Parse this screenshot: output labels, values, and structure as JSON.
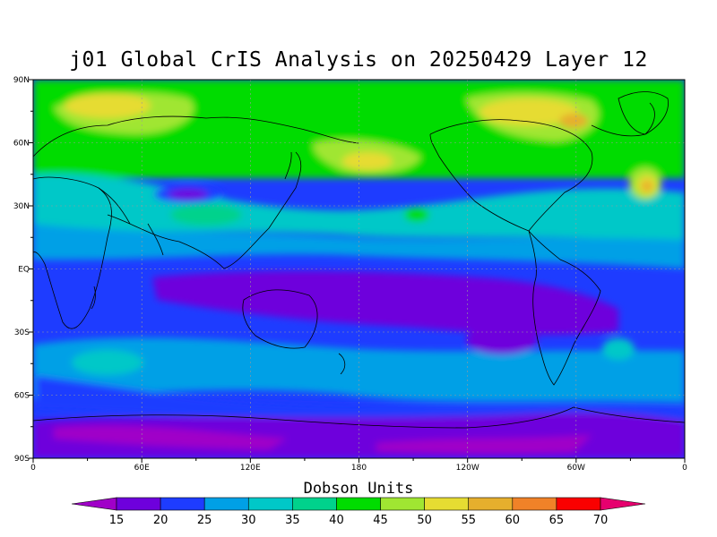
{
  "title": "j01 Global CrIS Analysis on 20250429 Layer 12",
  "colorbar": {
    "title": "Dobson Units",
    "levels": [
      "15",
      "20",
      "25",
      "30",
      "35",
      "40",
      "45",
      "50",
      "55",
      "60",
      "65",
      "70"
    ],
    "colors": [
      "#a000c8",
      "#6e00dc",
      "#1e3cff",
      "#00a0e6",
      "#00c8c8",
      "#00d28c",
      "#00dc00",
      "#a0e632",
      "#e6dc32",
      "#e6af2d",
      "#f08228",
      "#fa0000",
      "#e6006e"
    ]
  },
  "axes": {
    "lat_labels": [
      "90N",
      "60N",
      "30N",
      "EQ",
      "30S",
      "60S",
      "90S"
    ],
    "lon_labels": [
      "0",
      "60E",
      "120E",
      "180",
      "120W",
      "60W",
      "0"
    ]
  }
}
